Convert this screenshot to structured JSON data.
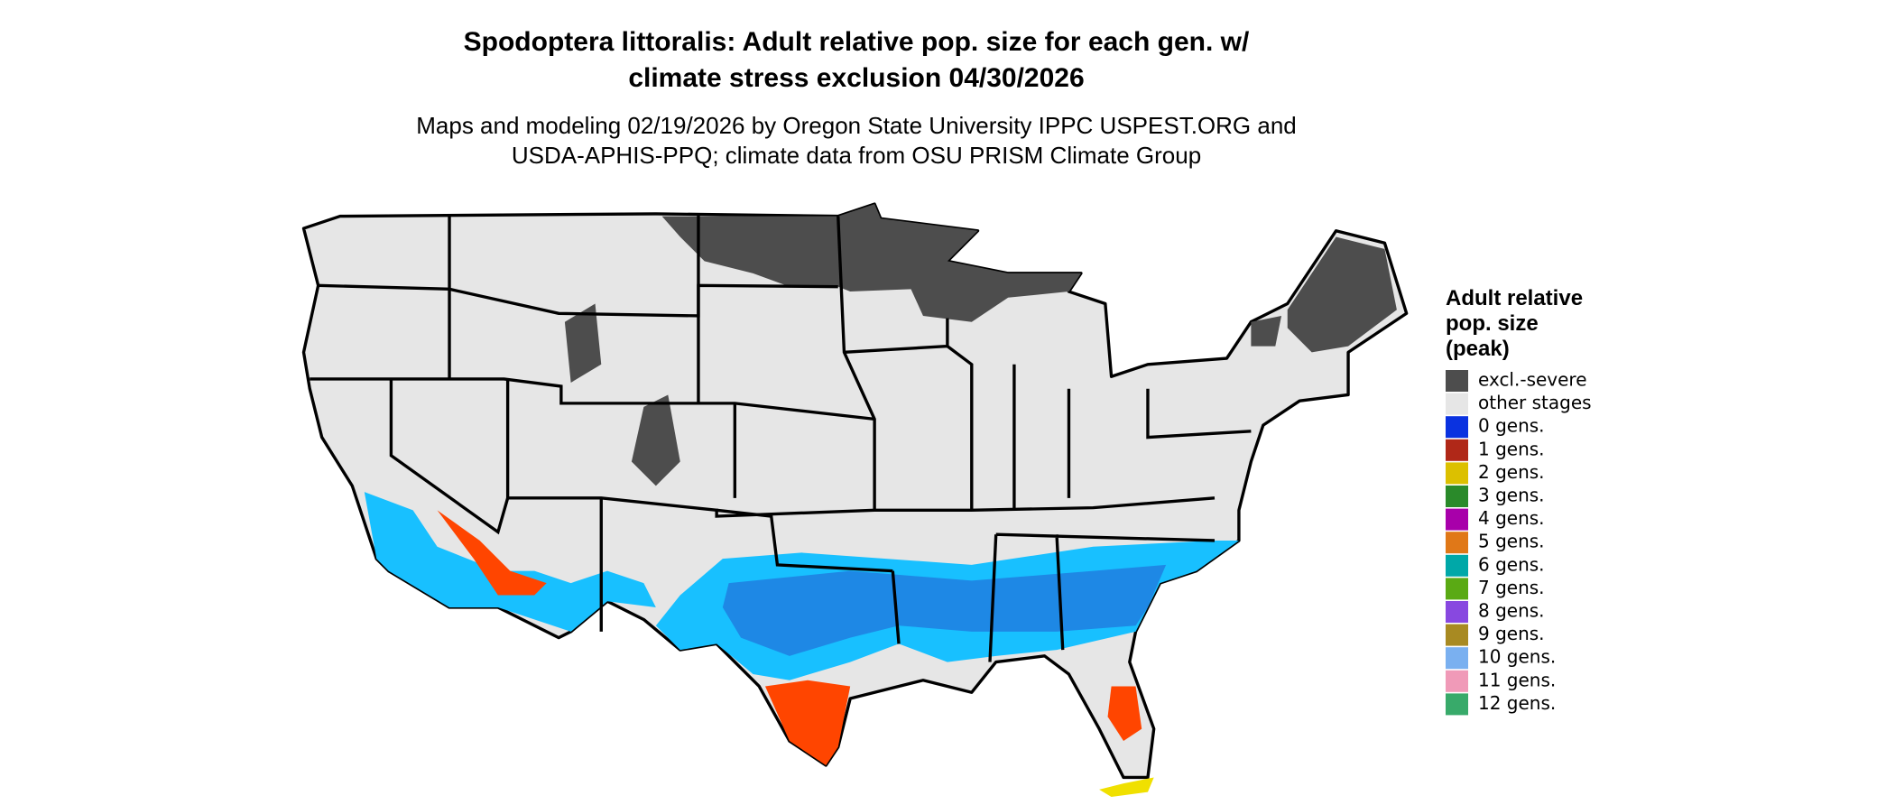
{
  "title": [
    "Spodoptera littoralis: Adult relative pop. size for each gen. w/",
    "climate stress exclusion 04/30/2026"
  ],
  "subtitle": [
    "Maps and modeling 02/19/2026 by Oregon State University IPPC USPEST.ORG and",
    "USDA-APHIS-PPQ; climate data from OSU PRISM Climate Group"
  ],
  "legend": {
    "title": [
      "Adult relative",
      "pop. size",
      "(peak)"
    ],
    "items": [
      {
        "label": "excl.-severe",
        "color": "#4d4d4d"
      },
      {
        "label": "other stages",
        "color": "#e6e6e6"
      },
      {
        "label": "0 gens.",
        "color": "#0a32e0"
      },
      {
        "label": "1 gens.",
        "color": "#b02818"
      },
      {
        "label": "2 gens.",
        "color": "#dcc000"
      },
      {
        "label": "3 gens.",
        "color": "#2a8a2a"
      },
      {
        "label": "4 gens.",
        "color": "#a800aa"
      },
      {
        "label": "5 gens.",
        "color": "#e07818"
      },
      {
        "label": "6 gens.",
        "color": "#00a8a8"
      },
      {
        "label": "7 gens.",
        "color": "#5aaa14"
      },
      {
        "label": "8 gens.",
        "color": "#8848e0"
      },
      {
        "label": "9 gens.",
        "color": "#a88a22"
      },
      {
        "label": "10 gens.",
        "color": "#7ab0f0"
      },
      {
        "label": "11 gens.",
        "color": "#f09ab8"
      },
      {
        "label": "12 gens.",
        "color": "#38aa6a"
      }
    ]
  }
}
